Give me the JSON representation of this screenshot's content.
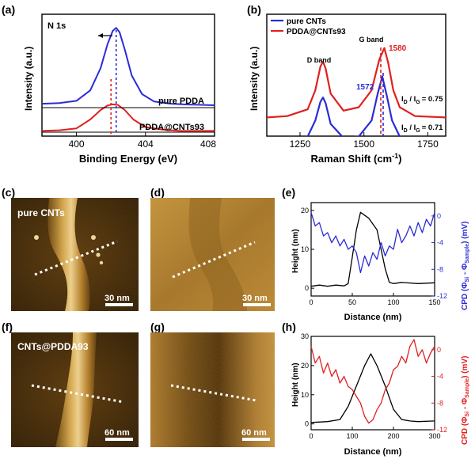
{
  "panels": {
    "a": {
      "label": "(a)",
      "corner_text": "N 1s",
      "ylabel": "Intensity (a.u.)",
      "xlabel": "Binding Energy (eV)",
      "ticks": [
        "400",
        "404",
        "408"
      ],
      "curve_labels": [
        "pure PDDA",
        "PDDA@CNTs93"
      ]
    },
    "b": {
      "label": "(b)",
      "ylabel": "Intensity (a.u.)",
      "xlabel_main": "Raman Shift (cm",
      "xlabel_sup": "-1",
      "xlabel_close": ")",
      "ticks": [
        "1250",
        "1500",
        "1750"
      ],
      "legend": [
        "pure CNTs",
        "PDDA@CNTs93"
      ],
      "d_band": "D band",
      "g_band": "G band",
      "peak_red": "1580",
      "peak_blue": "1572",
      "ratio_red": "= 0.75",
      "ratio_blue": "= 0.71",
      "ratio_I": "I",
      "ratio_D": "D",
      "ratio_slash": " / I",
      "ratio_G": "G"
    },
    "c": {
      "label": "(c)",
      "title": "pure CNTs",
      "scale": "30 nm"
    },
    "d": {
      "label": "(d)",
      "scale": "30 nm"
    },
    "e": {
      "label": "(e)",
      "ylabel_left": "Height (nm)",
      "ylabel_right": "CPD (Φ",
      "xlabel": "Distance (nm)",
      "xticks": [
        "0",
        "50",
        "100",
        "150"
      ],
      "yticks_left": [
        "0",
        "10",
        "20"
      ],
      "yticks_right": [
        "0",
        "-4",
        "-8",
        "-12"
      ]
    },
    "f": {
      "label": "(f)",
      "title": "CNTs@PDDA93",
      "scale": "60 nm"
    },
    "g": {
      "label": "(g)",
      "scale": "60 nm"
    },
    "h": {
      "label": "(h)",
      "ylabel_left": "Height (nm)",
      "ylabel_right": "CPD (Φ",
      "xlabel": "Distance (nm)",
      "xticks": [
        "0",
        "100",
        "200",
        "300"
      ],
      "yticks_left": [
        "0",
        "10",
        "20",
        "30"
      ],
      "yticks_right": [
        "0",
        "-4",
        "-8",
        "-12"
      ]
    }
  },
  "cpd_label_parts": {
    "si": "Si",
    "minus": " - Φ",
    "sample": "Sample",
    "unit": ") (mV)"
  },
  "colors": {
    "blue": "#2b2bd6",
    "red": "#e02020",
    "black": "#000000",
    "afm_dark": "#3a2408",
    "afm_light": "#f0d090"
  },
  "chart_data": [
    {
      "type": "line",
      "panel": "a",
      "xlabel": "Binding Energy (eV)",
      "ylabel": "Intensity (a.u.)",
      "xlim": [
        398,
        408
      ],
      "series": [
        {
          "name": "pure PDDA",
          "x": [
            398.0,
            399.0,
            400.0,
            400.8,
            401.4,
            401.8,
            402.1,
            402.3,
            402.5,
            402.8,
            403.2,
            403.8,
            404.5,
            405.5,
            406.5,
            408.0
          ],
          "y": [
            1.02,
            1.03,
            1.06,
            1.2,
            1.5,
            1.82,
            2.0,
            2.04,
            1.98,
            1.75,
            1.4,
            1.15,
            1.05,
            1.02,
            1.01,
            1.0
          ]
        },
        {
          "name": "PDDA@CNTs93",
          "x": [
            398.0,
            399.0,
            400.0,
            400.8,
            401.4,
            401.8,
            402.1,
            402.4,
            402.8,
            403.3,
            404.0,
            405.0,
            406.0,
            408.0
          ],
          "y": [
            0.02,
            0.03,
            0.06,
            0.2,
            0.35,
            0.42,
            0.44,
            0.43,
            0.35,
            0.2,
            0.08,
            0.04,
            0.02,
            0.02
          ]
        }
      ]
    },
    {
      "type": "line",
      "panel": "b",
      "xlabel": "Raman Shift (cm-1)",
      "ylabel": "Intensity (a.u.)",
      "xlim": [
        1120,
        1820
      ],
      "series": [
        {
          "name": "pure CNTs",
          "x": [
            1120,
            1200,
            1280,
            1310,
            1330,
            1340,
            1350,
            1370,
            1420,
            1480,
            1530,
            1555,
            1572,
            1590,
            1610,
            1640,
            1700,
            1820
          ],
          "y": [
            0.02,
            0.04,
            0.12,
            0.35,
            0.62,
            0.68,
            0.6,
            0.3,
            0.1,
            0.12,
            0.35,
            0.75,
            0.98,
            0.7,
            0.35,
            0.12,
            0.04,
            0.02
          ]
        },
        {
          "name": "PDDA@CNTs93",
          "x": [
            1120,
            1200,
            1280,
            1310,
            1330,
            1340,
            1350,
            1370,
            1420,
            1480,
            1530,
            1560,
            1580,
            1595,
            1615,
            1640,
            1700,
            1820
          ],
          "y": [
            1.1,
            1.12,
            1.22,
            1.5,
            1.85,
            1.92,
            1.82,
            1.45,
            1.2,
            1.25,
            1.5,
            1.95,
            2.12,
            1.9,
            1.5,
            1.25,
            1.12,
            1.1
          ]
        }
      ]
    },
    {
      "type": "line",
      "panel": "e",
      "xlabel": "Distance (nm)",
      "xlim": [
        0,
        150
      ],
      "series": [
        {
          "name": "Height",
          "axis": "left",
          "x": [
            0,
            10,
            20,
            30,
            40,
            45,
            50,
            55,
            60,
            70,
            80,
            85,
            90,
            95,
            100,
            110,
            130,
            150
          ],
          "y": [
            0.5,
            0.8,
            0.5,
            0.8,
            0.6,
            1.2,
            8,
            15,
            19.5,
            18,
            15,
            10,
            5,
            1.5,
            1.2,
            1.5,
            1.2,
            1.4
          ]
        },
        {
          "name": "CPD",
          "axis": "right",
          "x": [
            0,
            5,
            10,
            15,
            20,
            25,
            30,
            35,
            40,
            45,
            50,
            55,
            60,
            65,
            70,
            75,
            80,
            85,
            90,
            95,
            100,
            105,
            110,
            115,
            120,
            125,
            130,
            135,
            140,
            145,
            150
          ],
          "y": [
            0.5,
            -1.5,
            -1,
            -3,
            -2.5,
            -4,
            -3,
            -4.5,
            -3.5,
            -5,
            -4.5,
            -5.5,
            -8.5,
            -6,
            -7.5,
            -5.5,
            -6.5,
            -4,
            -6,
            -4.5,
            -5,
            -2,
            -4,
            -3,
            -1.5,
            -3,
            -1,
            -2.5,
            -0.5,
            -1.5,
            0.5
          ]
        }
      ]
    },
    {
      "type": "line",
      "panel": "h",
      "xlabel": "Distance (nm)",
      "xlim": [
        0,
        300
      ],
      "series": [
        {
          "name": "Height",
          "axis": "left",
          "x": [
            0,
            40,
            70,
            90,
            110,
            130,
            145,
            160,
            180,
            200,
            220,
            240,
            260,
            300
          ],
          "y": [
            0.5,
            0.8,
            1.5,
            6,
            13,
            20,
            24,
            20,
            13,
            5,
            1.5,
            1,
            0.8,
            1
          ]
        },
        {
          "name": "CPD",
          "axis": "right",
          "x": [
            0,
            10,
            20,
            30,
            40,
            50,
            60,
            70,
            80,
            90,
            100,
            110,
            120,
            130,
            140,
            150,
            160,
            170,
            180,
            190,
            200,
            210,
            220,
            230,
            240,
            250,
            260,
            270,
            280,
            290,
            300
          ],
          "y": [
            0.5,
            -2,
            -1,
            -3.5,
            -2,
            -4,
            -3,
            -5,
            -4,
            -5.5,
            -6,
            -7,
            -8,
            -10,
            -11,
            -10.5,
            -9,
            -8,
            -6,
            -5,
            -3,
            -2.5,
            -1,
            -2,
            0.5,
            1.5,
            -1,
            0,
            -2,
            -0.5,
            0.5
          ]
        }
      ]
    }
  ]
}
